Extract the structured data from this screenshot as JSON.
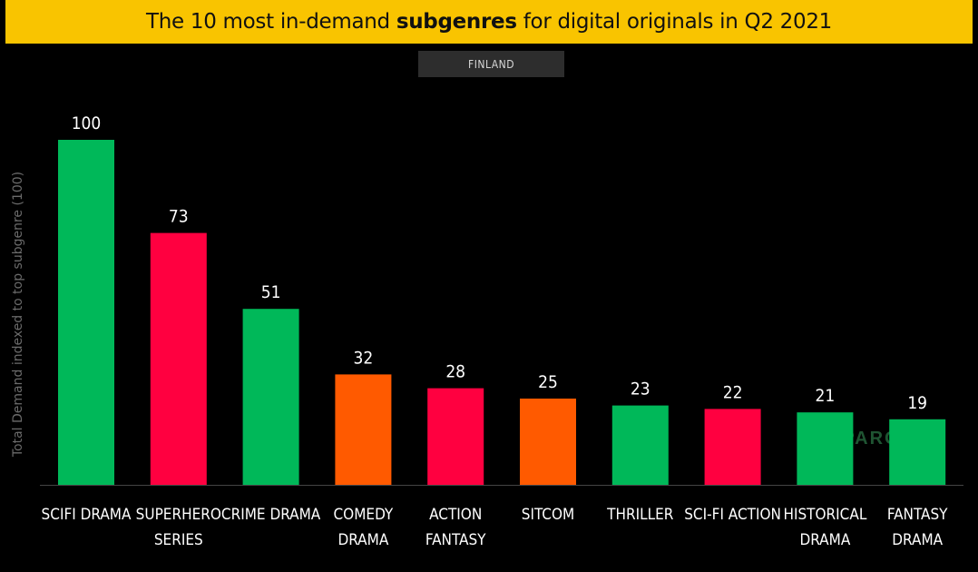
{
  "title": {
    "prefix": "The 10 most in-demand ",
    "bold": "subgenres",
    "suffix": " for digital originals in Q2 2021"
  },
  "subtitle": "FINLAND",
  "colors": {
    "green": "#00b859",
    "red": "#ff0040",
    "orange": "#ff5a00",
    "background": "#000000",
    "title_bar": "#f9c400"
  },
  "chart_data": {
    "type": "bar",
    "title": "The 10 most in-demand subgenres for digital originals in Q2 2021",
    "subtitle": "FINLAND",
    "ylabel": "Total Demand indexed to top subgenre (100)",
    "xlabel": "",
    "ylim": [
      0,
      100
    ],
    "grid": false,
    "categories": [
      [
        "SCIFI DRAMA"
      ],
      [
        "SUPERHERO",
        "SERIES"
      ],
      [
        "CRIME DRAMA"
      ],
      [
        "COMEDY",
        "DRAMA"
      ],
      [
        "ACTION",
        "FANTASY"
      ],
      [
        "SITCOM"
      ],
      [
        "THRILLER"
      ],
      [
        "SCI-FI ACTION"
      ],
      [
        "HISTORICAL",
        "DRAMA"
      ],
      [
        "FANTASY",
        "DRAMA"
      ]
    ],
    "values": [
      100,
      73,
      51,
      32,
      28,
      25,
      23,
      22,
      21,
      19
    ],
    "bar_colors": [
      "green",
      "red",
      "green",
      "orange",
      "red",
      "orange",
      "green",
      "red",
      "green",
      "green"
    ]
  }
}
